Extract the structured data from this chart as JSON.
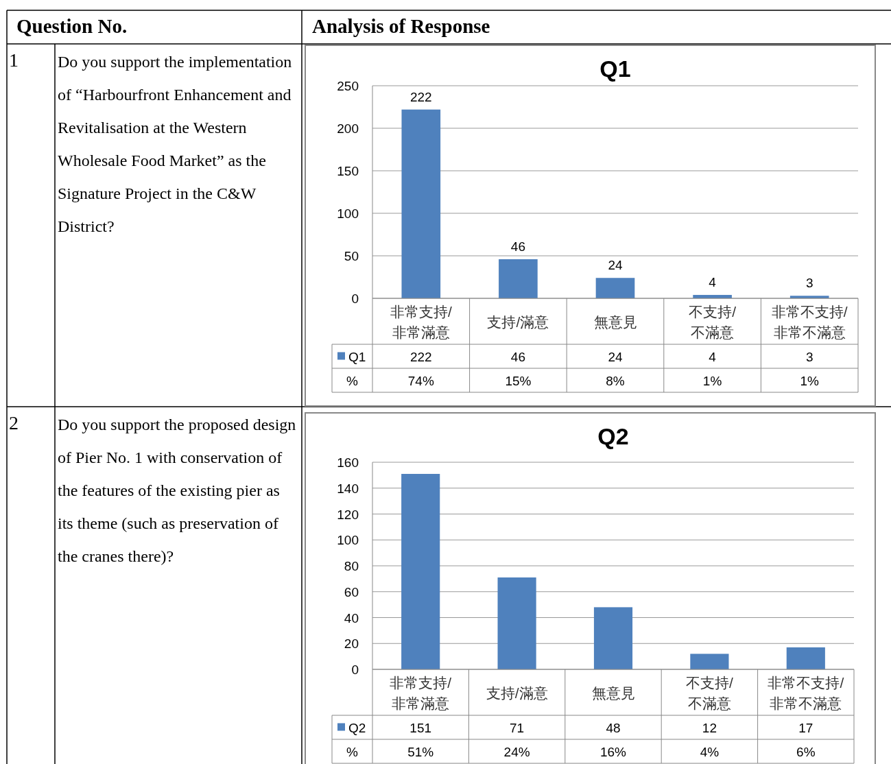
{
  "chart_data": [
    {
      "type": "bar",
      "title": "Q1",
      "categories": [
        "非常支持/非常滿意",
        "支持/滿意",
        "無意見",
        "不支持/不滿意",
        "非常不支持/非常不滿意"
      ],
      "series": [
        {
          "name": "Q1",
          "color": "#4f81bd",
          "values": [
            222,
            46,
            24,
            4,
            3
          ]
        }
      ],
      "ylim": [
        0,
        250
      ],
      "yticks": [
        0,
        50,
        100,
        150,
        200,
        250
      ],
      "grid": "y",
      "legend": "bottom",
      "data_labels": true,
      "annotations": [
        {
          "text": "222",
          "x": "非常支持/非常滿意",
          "y": 222
        },
        {
          "text": "46",
          "x": "支持/滿意",
          "y": 46
        },
        {
          "text": "24",
          "x": "無意見",
          "y": 24
        },
        {
          "text": "4",
          "x": "不支持/不滿意",
          "y": 4
        },
        {
          "text": "3",
          "x": "非常不支持/非常不滿意",
          "y": 3
        },
        "Question No.",
        "Analysis of Response",
        "%",
        "74%",
        "15%",
        "8%",
        "1%",
        "1%",
        "1",
        "Do you support the implementation of “Harbourfront Enhancement and Revitalisation at the Western Wholesale Food Market” as the Signature Project in the C&W District?"
      ]
    },
    {
      "type": "bar",
      "title": "Q2",
      "categories": [
        "非常支持/非常滿意",
        "支持/滿意",
        "無意見",
        "不支持/不滿意",
        "非常不支持/非常不滿意"
      ],
      "series": [
        {
          "name": "Q2",
          "color": "#4f81bd",
          "values": [
            151,
            71,
            48,
            12,
            17
          ]
        }
      ],
      "ylim": [
        0,
        160
      ],
      "yticks": [
        0,
        20,
        40,
        60,
        80,
        100,
        120,
        140,
        160
      ],
      "grid": "y",
      "legend": "bottom",
      "data_labels": true,
      "annotations": [
        "%",
        "51%",
        "24%",
        "16%",
        "4%",
        "6%",
        "2",
        "Do you support the proposed design of Pier No. 1 with conservation of the features of the existing pier as its theme (such as preservation of the cranes there)?"
      ]
    }
  ]
}
